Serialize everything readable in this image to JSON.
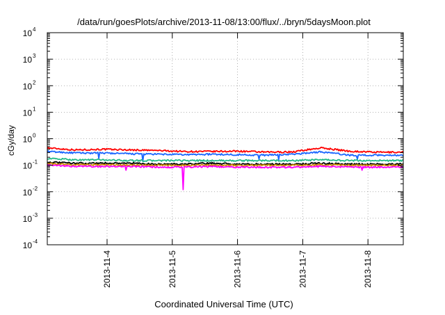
{
  "chart_data": {
    "type": "line",
    "title": "/data/run/goesPlots/archive/2013-11-08/13:00/flux/../bryn/5daysMoon.plot",
    "xlabel": "Coordinated Universal Time (UTC)",
    "ylabel": "cGy/day",
    "y_scale": "log",
    "ylim_exponents": [
      -4,
      4
    ],
    "y_ticks": [
      {
        "base": "10",
        "exp": "-4"
      },
      {
        "base": "10",
        "exp": "-3"
      },
      {
        "base": "10",
        "exp": "-2"
      },
      {
        "base": "10",
        "exp": "-1"
      },
      {
        "base": "10",
        "exp": "0"
      },
      {
        "base": "10",
        "exp": "1"
      },
      {
        "base": "10",
        "exp": "2"
      },
      {
        "base": "10",
        "exp": "3"
      },
      {
        "base": "10",
        "exp": "4"
      }
    ],
    "x_range": [
      "2013-11-03 02:00",
      "2013-11-08 13:00"
    ],
    "x_ticks": [
      "2013-11-4",
      "2013-11-5",
      "2013-11-6",
      "2013-11-7",
      "2013-11-8"
    ],
    "grid": true,
    "legend": "none",
    "series": [
      {
        "color": "#ff0000",
        "values": [
          0.45,
          0.38,
          0.4,
          0.38,
          0.36,
          0.33,
          0.33,
          0.34,
          0.31,
          0.32,
          0.45,
          0.34,
          0.31,
          0.31
        ],
        "dips": []
      },
      {
        "color": "#1a66ff",
        "values": [
          0.33,
          0.29,
          0.29,
          0.27,
          0.26,
          0.25,
          0.26,
          0.25,
          0.24,
          0.26,
          0.32,
          0.24,
          0.24,
          0.24
        ],
        "dips": [
          {
            "x": "2013-11-03 21:00",
            "y": 0.18
          },
          {
            "x": "2013-11-04 13:00",
            "y": 0.14
          },
          {
            "x": "2013-11-06 08:00",
            "y": 0.17
          },
          {
            "x": "2013-11-06 15:00",
            "y": 0.16
          },
          {
            "x": "2013-11-07 20:00",
            "y": 0.17
          }
        ]
      },
      {
        "color": "#22bb88",
        "values": [
          0.18,
          0.16,
          0.16,
          0.15,
          0.15,
          0.15,
          0.15,
          0.15,
          0.15,
          0.15,
          0.16,
          0.15,
          0.15,
          0.15
        ],
        "dips": []
      },
      {
        "color": "#000000",
        "values": [
          0.13,
          0.12,
          0.12,
          0.12,
          0.11,
          0.11,
          0.12,
          0.11,
          0.11,
          0.11,
          0.12,
          0.11,
          0.11,
          0.11
        ],
        "dips": []
      },
      {
        "color": "#cc8800",
        "values": [
          0.115,
          0.105,
          0.105,
          0.1,
          0.1,
          0.1,
          0.1,
          0.1,
          0.1,
          0.1,
          0.105,
          0.1,
          0.1,
          0.1
        ],
        "dips": []
      },
      {
        "color": "#ff00ff",
        "values": [
          0.1,
          0.09,
          0.09,
          0.09,
          0.085,
          0.085,
          0.09,
          0.085,
          0.085,
          0.085,
          0.09,
          0.085,
          0.085,
          0.085
        ],
        "dips": [
          {
            "x": "2013-11-05 04:00",
            "y": 0.012
          },
          {
            "x": "2013-11-04 07:00",
            "y": 0.065
          },
          {
            "x": "2013-11-07 22:00",
            "y": 0.065
          }
        ]
      }
    ]
  }
}
